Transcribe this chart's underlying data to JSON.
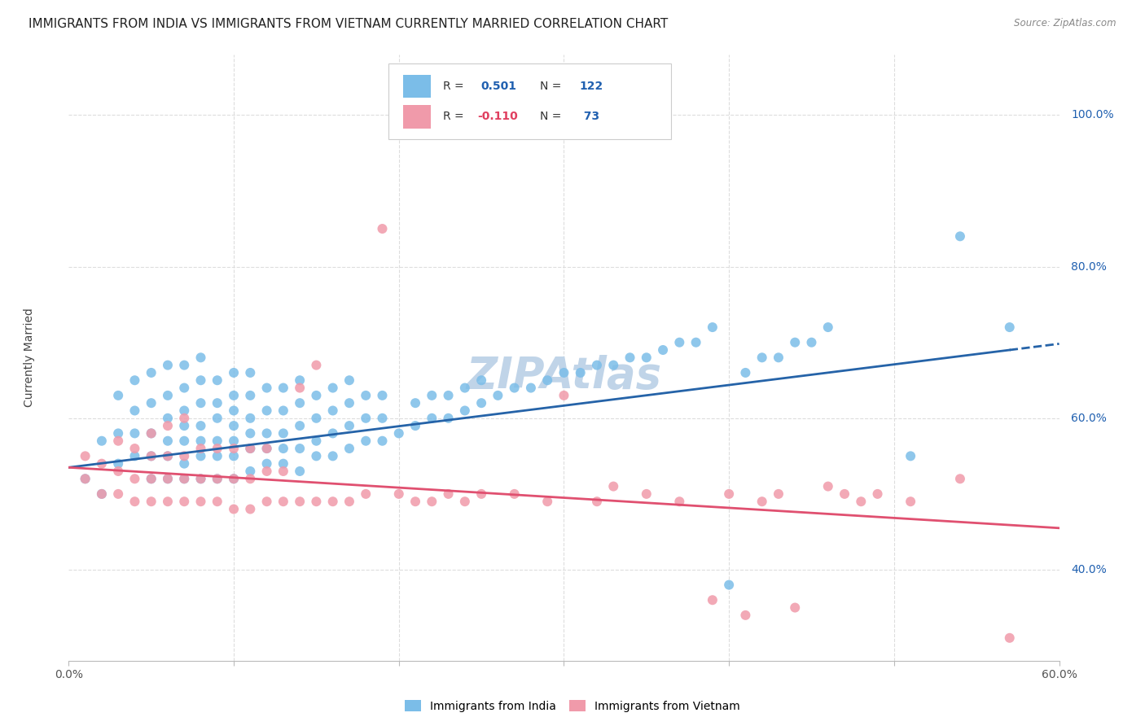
{
  "title": "IMMIGRANTS FROM INDIA VS IMMIGRANTS FROM VIETNAM CURRENTLY MARRIED CORRELATION CHART",
  "source": "Source: ZipAtlas.com",
  "ylabel": "Currently Married",
  "yaxis_labels": [
    "40.0%",
    "60.0%",
    "80.0%",
    "100.0%"
  ],
  "yaxis_values": [
    0.4,
    0.6,
    0.8,
    1.0
  ],
  "xlim": [
    0.0,
    0.6
  ],
  "ylim": [
    0.28,
    1.08
  ],
  "india_color": "#7bbde8",
  "vietnam_color": "#f09aaa",
  "india_line_color": "#2563a8",
  "vietnam_line_color": "#e05070",
  "india_R": 0.501,
  "india_N": 122,
  "vietnam_R": -0.11,
  "vietnam_N": 73,
  "watermark": "ZIPAtlas",
  "background_color": "#ffffff",
  "grid_color": "#dddddd",
  "title_fontsize": 11,
  "axis_label_fontsize": 10,
  "tick_label_fontsize": 9,
  "watermark_color": "#c0d4e8",
  "watermark_fontsize": 38,
  "india_scatter_x": [
    0.01,
    0.02,
    0.02,
    0.03,
    0.03,
    0.03,
    0.04,
    0.04,
    0.04,
    0.04,
    0.05,
    0.05,
    0.05,
    0.05,
    0.05,
    0.06,
    0.06,
    0.06,
    0.06,
    0.06,
    0.06,
    0.07,
    0.07,
    0.07,
    0.07,
    0.07,
    0.07,
    0.07,
    0.08,
    0.08,
    0.08,
    0.08,
    0.08,
    0.08,
    0.08,
    0.09,
    0.09,
    0.09,
    0.09,
    0.09,
    0.09,
    0.1,
    0.1,
    0.1,
    0.1,
    0.1,
    0.1,
    0.1,
    0.11,
    0.11,
    0.11,
    0.11,
    0.11,
    0.11,
    0.12,
    0.12,
    0.12,
    0.12,
    0.12,
    0.13,
    0.13,
    0.13,
    0.13,
    0.13,
    0.14,
    0.14,
    0.14,
    0.14,
    0.14,
    0.15,
    0.15,
    0.15,
    0.15,
    0.16,
    0.16,
    0.16,
    0.16,
    0.17,
    0.17,
    0.17,
    0.17,
    0.18,
    0.18,
    0.18,
    0.19,
    0.19,
    0.19,
    0.2,
    0.21,
    0.21,
    0.22,
    0.22,
    0.23,
    0.23,
    0.24,
    0.24,
    0.25,
    0.25,
    0.26,
    0.27,
    0.28,
    0.29,
    0.3,
    0.31,
    0.32,
    0.33,
    0.34,
    0.35,
    0.36,
    0.37,
    0.38,
    0.39,
    0.4,
    0.41,
    0.42,
    0.43,
    0.44,
    0.45,
    0.46,
    0.51,
    0.54,
    0.57
  ],
  "india_scatter_y": [
    0.52,
    0.5,
    0.57,
    0.54,
    0.58,
    0.63,
    0.55,
    0.58,
    0.61,
    0.65,
    0.52,
    0.55,
    0.58,
    0.62,
    0.66,
    0.52,
    0.55,
    0.57,
    0.6,
    0.63,
    0.67,
    0.52,
    0.54,
    0.57,
    0.59,
    0.61,
    0.64,
    0.67,
    0.52,
    0.55,
    0.57,
    0.59,
    0.62,
    0.65,
    0.68,
    0.52,
    0.55,
    0.57,
    0.6,
    0.62,
    0.65,
    0.52,
    0.55,
    0.57,
    0.59,
    0.61,
    0.63,
    0.66,
    0.53,
    0.56,
    0.58,
    0.6,
    0.63,
    0.66,
    0.54,
    0.56,
    0.58,
    0.61,
    0.64,
    0.54,
    0.56,
    0.58,
    0.61,
    0.64,
    0.53,
    0.56,
    0.59,
    0.62,
    0.65,
    0.55,
    0.57,
    0.6,
    0.63,
    0.55,
    0.58,
    0.61,
    0.64,
    0.56,
    0.59,
    0.62,
    0.65,
    0.57,
    0.6,
    0.63,
    0.57,
    0.6,
    0.63,
    0.58,
    0.59,
    0.62,
    0.6,
    0.63,
    0.6,
    0.63,
    0.61,
    0.64,
    0.62,
    0.65,
    0.63,
    0.64,
    0.64,
    0.65,
    0.66,
    0.66,
    0.67,
    0.67,
    0.68,
    0.68,
    0.69,
    0.7,
    0.7,
    0.72,
    0.38,
    0.66,
    0.68,
    0.68,
    0.7,
    0.7,
    0.72,
    0.55,
    0.84,
    0.72
  ],
  "vietnam_scatter_x": [
    0.01,
    0.01,
    0.02,
    0.02,
    0.03,
    0.03,
    0.03,
    0.04,
    0.04,
    0.04,
    0.05,
    0.05,
    0.05,
    0.05,
    0.06,
    0.06,
    0.06,
    0.06,
    0.07,
    0.07,
    0.07,
    0.07,
    0.08,
    0.08,
    0.08,
    0.09,
    0.09,
    0.09,
    0.1,
    0.1,
    0.1,
    0.11,
    0.11,
    0.11,
    0.12,
    0.12,
    0.12,
    0.13,
    0.13,
    0.14,
    0.14,
    0.15,
    0.15,
    0.16,
    0.17,
    0.18,
    0.19,
    0.2,
    0.21,
    0.22,
    0.23,
    0.24,
    0.25,
    0.27,
    0.29,
    0.3,
    0.32,
    0.33,
    0.35,
    0.37,
    0.39,
    0.4,
    0.41,
    0.42,
    0.43,
    0.44,
    0.46,
    0.47,
    0.48,
    0.49,
    0.51,
    0.54,
    0.57
  ],
  "vietnam_scatter_y": [
    0.52,
    0.55,
    0.5,
    0.54,
    0.5,
    0.53,
    0.57,
    0.49,
    0.52,
    0.56,
    0.49,
    0.52,
    0.55,
    0.58,
    0.49,
    0.52,
    0.55,
    0.59,
    0.49,
    0.52,
    0.55,
    0.6,
    0.49,
    0.52,
    0.56,
    0.49,
    0.52,
    0.56,
    0.48,
    0.52,
    0.56,
    0.48,
    0.52,
    0.56,
    0.49,
    0.53,
    0.56,
    0.49,
    0.53,
    0.49,
    0.64,
    0.49,
    0.67,
    0.49,
    0.49,
    0.5,
    0.85,
    0.5,
    0.49,
    0.49,
    0.5,
    0.49,
    0.5,
    0.5,
    0.49,
    0.63,
    0.49,
    0.51,
    0.5,
    0.49,
    0.36,
    0.5,
    0.34,
    0.49,
    0.5,
    0.35,
    0.51,
    0.5,
    0.49,
    0.5,
    0.49,
    0.52,
    0.31
  ]
}
